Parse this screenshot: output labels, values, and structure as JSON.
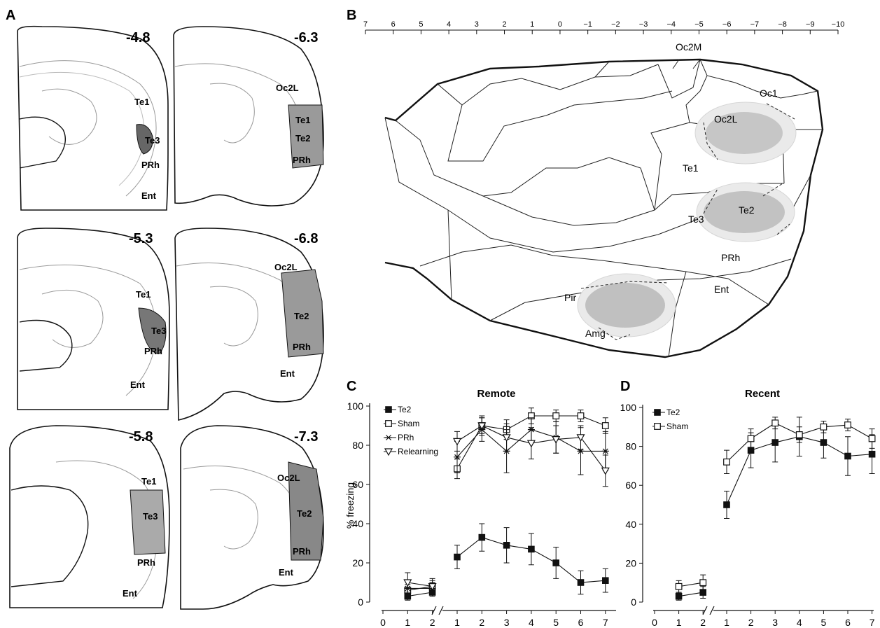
{
  "panel_labels": {
    "a": "A",
    "b": "B",
    "c": "C",
    "d": "D"
  },
  "panel_a": {
    "sections": [
      {
        "coord": "-4.8",
        "labels": [
          "Te1",
          "Te3",
          "PRh",
          "Ent"
        ]
      },
      {
        "coord": "-6.3",
        "labels": [
          "Oc2L",
          "Te1",
          "Te2",
          "PRh"
        ]
      },
      {
        "coord": "-5.3",
        "labels": [
          "Te1",
          "Te3",
          "PRh",
          "Ent"
        ]
      },
      {
        "coord": "-6.8",
        "labels": [
          "Oc2L",
          "Te2",
          "PRh",
          "Ent"
        ]
      },
      {
        "coord": "-5.8",
        "labels": [
          "Te1",
          "Te3",
          "PRh",
          "Ent"
        ]
      },
      {
        "coord": "-7.3",
        "labels": [
          "Oc2L",
          "Te2",
          "PRh",
          "Ent"
        ]
      }
    ]
  },
  "panel_b": {
    "ruler_ticks": [
      "7",
      "6",
      "5",
      "4",
      "3",
      "2",
      "1",
      "0",
      "−1",
      "−2",
      "−3",
      "−4",
      "−5",
      "−6",
      "−7",
      "−8",
      "−9",
      "−10"
    ],
    "regions": [
      "Oc2M",
      "Oc1",
      "Oc2L",
      "Te1",
      "Te3",
      "Te2",
      "PRh",
      "Pir",
      "Ent",
      "Amg"
    ]
  },
  "chart_data": [
    {
      "type": "line",
      "panel": "C",
      "title": "Remote",
      "xlabel": "",
      "ylabel": "% freezing",
      "ylim": [
        0,
        100
      ],
      "yticks": [
        "0",
        "20",
        "40",
        "60",
        "80",
        "100"
      ],
      "x_tick_labels": [
        "0",
        "1",
        "2",
        "1",
        "2",
        "3",
        "4",
        "5",
        "6",
        "7"
      ],
      "x_pre": [
        1,
        2
      ],
      "x_post": [
        1,
        2,
        3,
        4,
        5,
        6,
        7
      ],
      "series": [
        {
          "name": "Te2",
          "marker": "filled-square",
          "pre": [
            3,
            5
          ],
          "pre_err": [
            2,
            2
          ],
          "post": [
            23,
            33,
            29,
            27,
            20,
            10,
            11
          ],
          "post_err": [
            6,
            7,
            9,
            8,
            8,
            6,
            6
          ]
        },
        {
          "name": "Sham",
          "marker": "open-square",
          "pre": [
            6,
            8
          ],
          "pre_err": [
            3,
            3
          ],
          "post": [
            68,
            90,
            88,
            95,
            95,
            95,
            90
          ],
          "post_err": [
            5,
            4,
            5,
            4,
            3,
            3,
            4
          ]
        },
        {
          "name": "PRh",
          "marker": "star",
          "pre": [
            7,
            7
          ],
          "pre_err": [
            4,
            3
          ],
          "post": [
            74,
            88,
            77,
            88,
            84,
            77,
            77
          ],
          "post_err": [
            8,
            6,
            11,
            6,
            8,
            12,
            10
          ]
        },
        {
          "name": "Relearning",
          "marker": "open-triangle-down",
          "pre": [
            10,
            8
          ],
          "pre_err": [
            5,
            4
          ],
          "post": [
            82,
            90,
            84,
            81,
            83,
            84,
            67
          ],
          "post_err": [
            5,
            5,
            7,
            8,
            7,
            6,
            8
          ]
        }
      ]
    },
    {
      "type": "line",
      "panel": "D",
      "title": "Recent",
      "xlabel": "",
      "ylabel": "",
      "ylim": [
        0,
        100
      ],
      "yticks": [
        "0",
        "20",
        "40",
        "60",
        "80",
        "100"
      ],
      "x_tick_labels": [
        "0",
        "1",
        "2",
        "1",
        "2",
        "3",
        "4",
        "5",
        "6",
        "7"
      ],
      "x_pre": [
        1,
        2
      ],
      "x_post": [
        1,
        2,
        3,
        4,
        5,
        6,
        7
      ],
      "series": [
        {
          "name": "Te2",
          "marker": "filled-square",
          "pre": [
            3,
            5
          ],
          "pre_err": [
            2,
            3
          ],
          "post": [
            50,
            78,
            82,
            85,
            82,
            75,
            76
          ],
          "post_err": [
            7,
            9,
            10,
            10,
            8,
            10,
            10
          ]
        },
        {
          "name": "Sham",
          "marker": "open-square",
          "pre": [
            8,
            10
          ],
          "pre_err": [
            3,
            4
          ],
          "post": [
            72,
            84,
            92,
            86,
            90,
            91,
            84
          ],
          "post_err": [
            6,
            5,
            3,
            4,
            3,
            3,
            5
          ]
        }
      ]
    }
  ]
}
